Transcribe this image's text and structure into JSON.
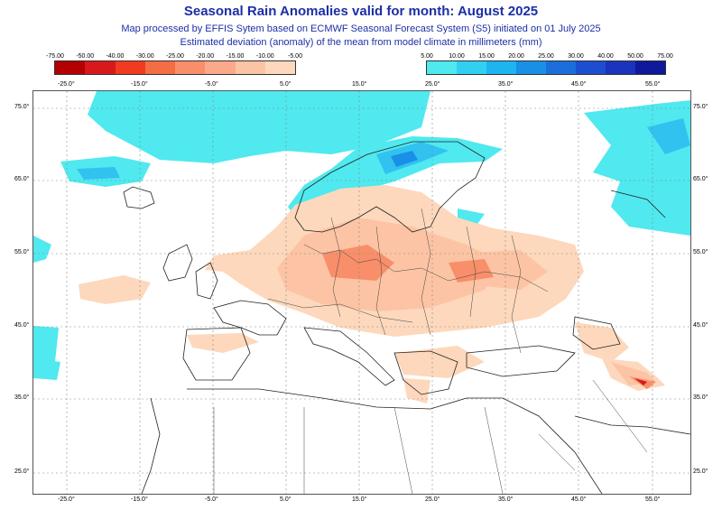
{
  "header": {
    "title": "Seasonal Rain Anomalies valid for month: August 2025",
    "subtitle1": "Map processed by EFFIS Sytem based on ECMWF Seasonal Forecast System (S5) initiated on 01 July 2025",
    "subtitle2": "Estimated deviation (anomaly) of the mean from model climate in millimeters (mm)"
  },
  "legend_dry": {
    "labels": [
      "-75.00",
      "-50.00",
      "-40.00",
      "-30.00",
      "-25.00",
      "-20.00",
      "-15.00",
      "-10.00",
      "-5.00"
    ],
    "colors": [
      "#b30000",
      "#d7191c",
      "#f03b20",
      "#f46d43",
      "#f88f6a",
      "#fba98a",
      "#fcc4a4",
      "#fdd8bc"
    ]
  },
  "legend_wet": {
    "labels": [
      "5.00",
      "10.00",
      "15.00",
      "20.00",
      "25.00",
      "30.00",
      "40.00",
      "50.00",
      "75.00"
    ],
    "colors": [
      "#4fe9ef",
      "#31d0f2",
      "#1eb4f0",
      "#1a8fe6",
      "#1b6edc",
      "#1d4ed2",
      "#1b33bd",
      "#10189b"
    ]
  },
  "map": {
    "lon_labels_top": [
      "-25.0°",
      "-15.0°",
      "-5.0°",
      "5.0°",
      "15.0°",
      "25.0°",
      "35.0°",
      "45.0°",
      "55.0°"
    ],
    "lon_labels_bottom": [
      "-25.0°",
      "-15.0°",
      "-5.0°",
      "5.0°",
      "15.0°",
      "25.0°",
      "35.0°",
      "45.0°",
      "55.0°"
    ],
    "lat_labels_left": [
      "75.0°",
      "65.0°",
      "55.0°",
      "45.0°",
      "35.0°",
      "25.0°"
    ],
    "lat_labels_right": [
      "75.0°",
      "65.0°",
      "55.0°",
      "45.0°",
      "35.0°",
      "25.0°"
    ]
  }
}
